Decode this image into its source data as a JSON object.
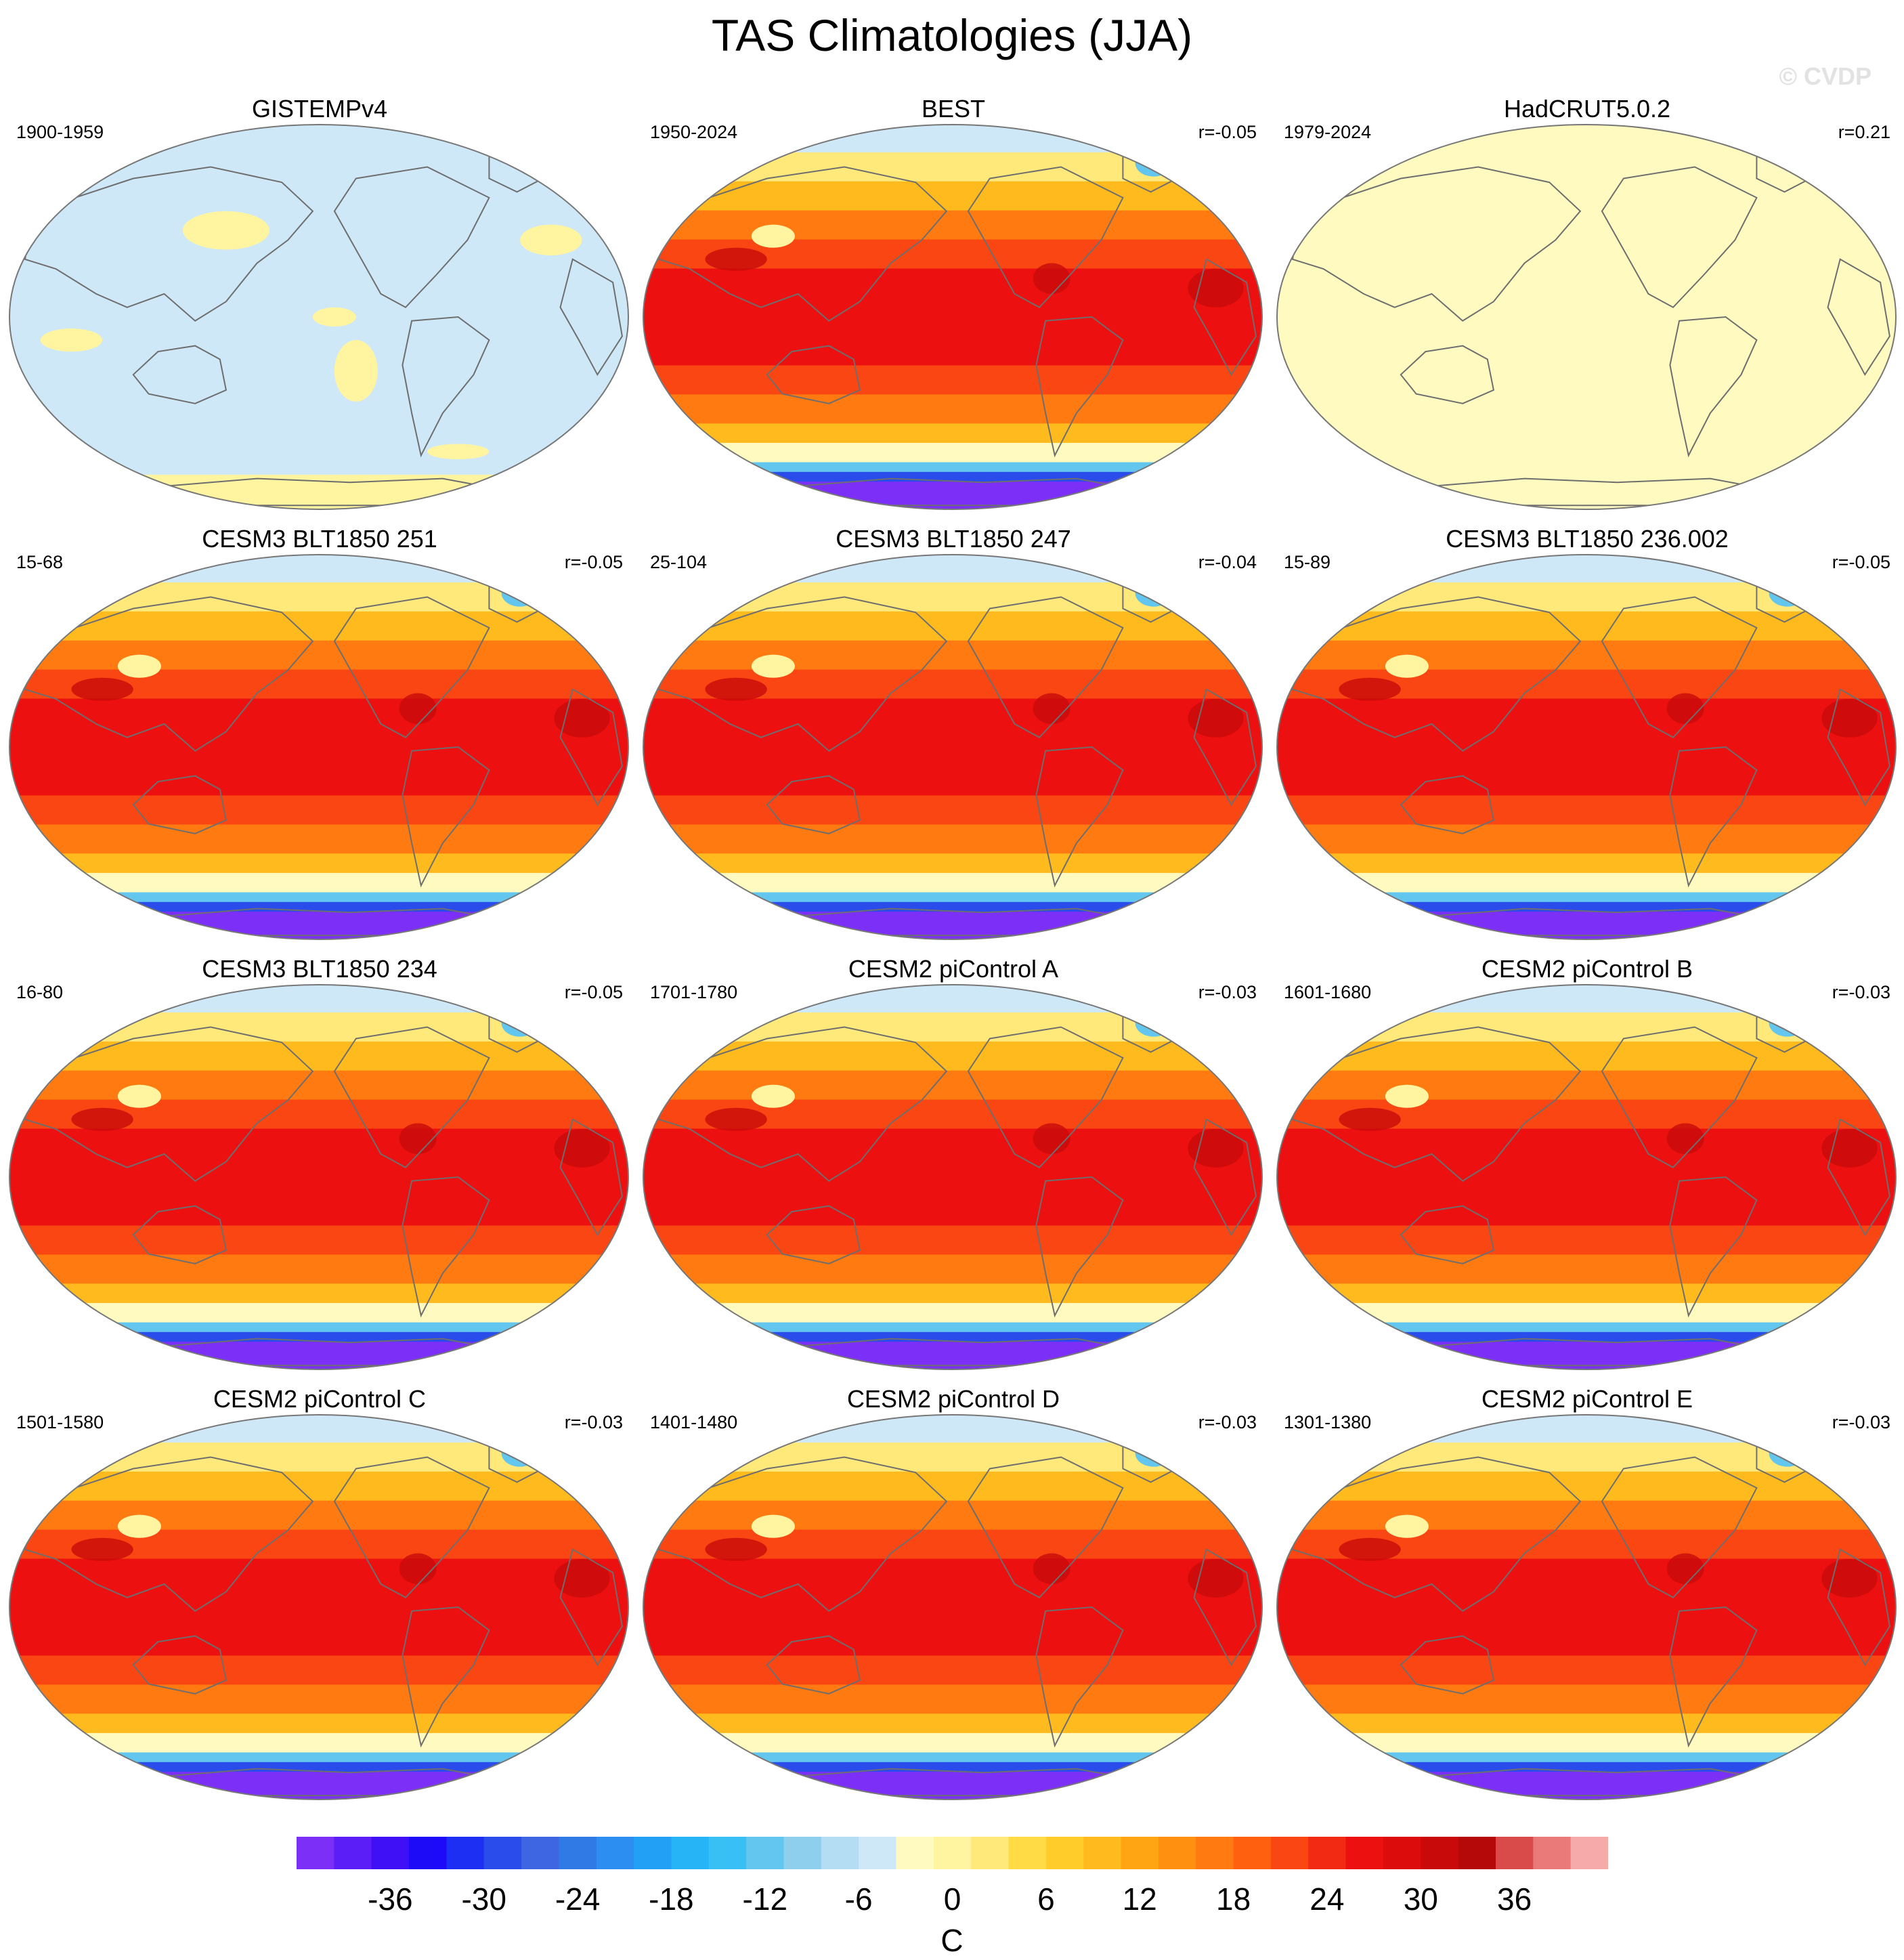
{
  "figure": {
    "title": "TAS Climatologies (JJA)",
    "watermark": "© CVDP"
  },
  "panels": [
    {
      "id": "gistempv4",
      "title": "GISTEMPv4",
      "period": "1900-1959",
      "corr": "",
      "style": "obs-sparse"
    },
    {
      "id": "best",
      "title": "BEST",
      "period": "1950-2024",
      "corr": "r=-0.05",
      "style": "full"
    },
    {
      "id": "hadcrut",
      "title": "HadCRUT5.0.2",
      "period": "1979-2024",
      "corr": "r=0.21",
      "style": "obs-flat"
    },
    {
      "id": "cesm3-251",
      "title": "CESM3 BLT1850 251",
      "period": "15-68",
      "corr": "r=-0.05",
      "style": "full"
    },
    {
      "id": "cesm3-247",
      "title": "CESM3 BLT1850 247",
      "period": "25-104",
      "corr": "r=-0.04",
      "style": "full"
    },
    {
      "id": "cesm3-236",
      "title": "CESM3 BLT1850 236.002",
      "period": "15-89",
      "corr": "r=-0.05",
      "style": "full"
    },
    {
      "id": "cesm3-234",
      "title": "CESM3 BLT1850 234",
      "period": "16-80",
      "corr": "r=-0.05",
      "style": "full"
    },
    {
      "id": "pic-a",
      "title": "CESM2 piControl A",
      "period": "1701-1780",
      "corr": "r=-0.03",
      "style": "full"
    },
    {
      "id": "pic-b",
      "title": "CESM2 piControl B",
      "period": "1601-1680",
      "corr": "r=-0.03",
      "style": "full"
    },
    {
      "id": "pic-c",
      "title": "CESM2 piControl C",
      "period": "1501-1580",
      "corr": "r=-0.03",
      "style": "full"
    },
    {
      "id": "pic-d",
      "title": "CESM2 piControl D",
      "period": "1401-1480",
      "corr": "r=-0.03",
      "style": "full"
    },
    {
      "id": "pic-e",
      "title": "CESM2 piControl E",
      "period": "1301-1380",
      "corr": "r=-0.03",
      "style": "full"
    }
  ],
  "colorbar": {
    "unit": "C",
    "min": -42,
    "max": 42,
    "step": 3,
    "tick_values": [
      -36,
      -30,
      -24,
      -18,
      -12,
      -6,
      0,
      6,
      12,
      18,
      24,
      30,
      36
    ],
    "tick_labels": [
      "-36",
      "-30",
      "-24",
      "-18",
      "-12",
      "-6",
      "0",
      "6",
      "12",
      "18",
      "24",
      "30",
      "36"
    ],
    "colors": [
      "#7b2ff7",
      "#5b1ef6",
      "#3f0ff5",
      "#1d0af7",
      "#1c2ff3",
      "#2a4cea",
      "#3f66e2",
      "#2f7ae5",
      "#2b8ef0",
      "#22a0f5",
      "#27b4f7",
      "#38c0f5",
      "#62c6ef",
      "#8fcfee",
      "#b4dcf3",
      "#cfe8f8",
      "#fffbc0",
      "#fff4a0",
      "#ffe97a",
      "#ffdc45",
      "#ffcc2a",
      "#ffbb1e",
      "#ffa514",
      "#ff9010",
      "#ff7a10",
      "#ff6010",
      "#fa4612",
      "#f22a14",
      "#ec1010",
      "#dc0c0c",
      "#c90a0a",
      "#b50808",
      "#d94a4a",
      "#ea7a7a",
      "#f6aaaa"
    ]
  },
  "legend_note": ""
}
